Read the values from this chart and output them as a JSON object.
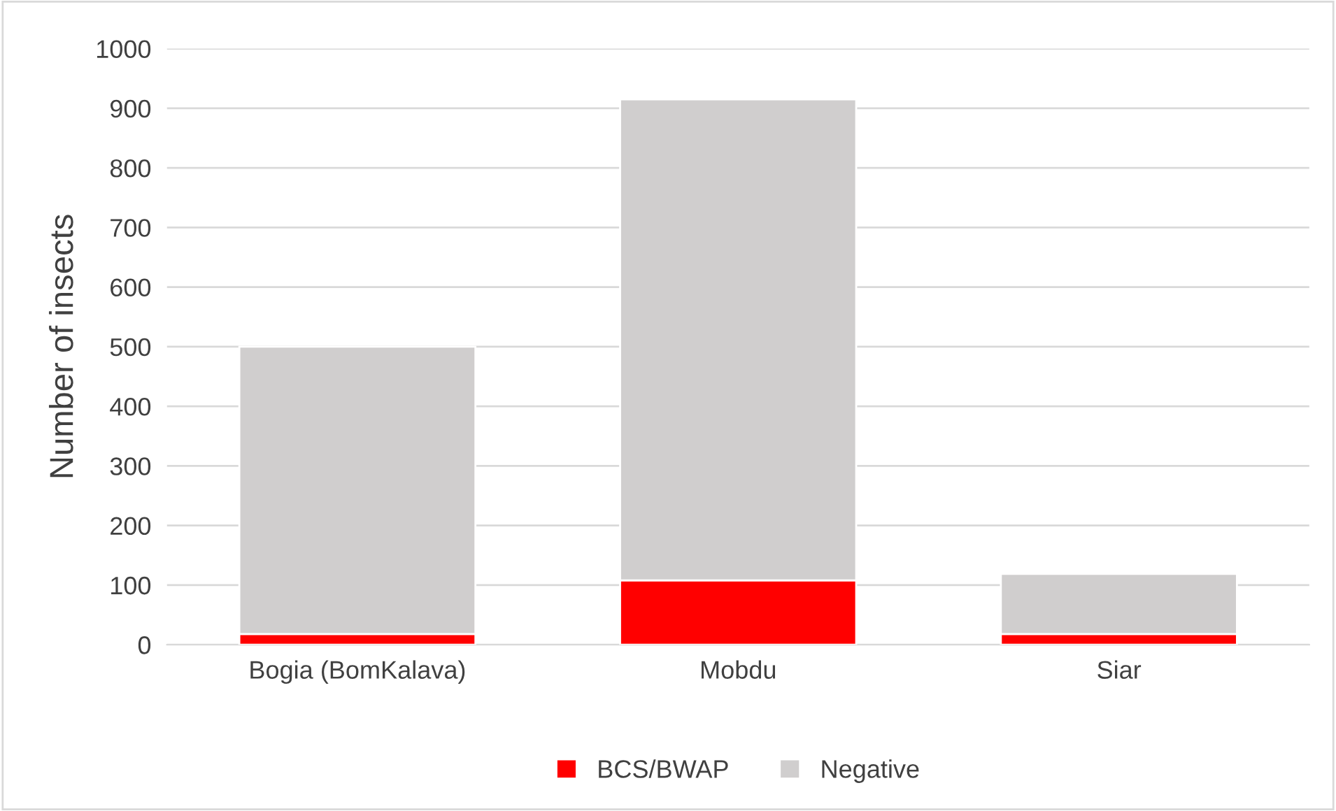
{
  "chart_data": {
    "type": "bar",
    "stacked": true,
    "ylabel": "Number of insects",
    "categories": [
      "Bogia (BomKalava)",
      "Mobdu",
      "Siar"
    ],
    "series": [
      {
        "name": "BCS/BWAP",
        "color": "#ff0000",
        "values": [
          18,
          108,
          18
        ]
      },
      {
        "name": "Negative",
        "color": "#d0cece",
        "values": [
          482,
          807,
          101
        ]
      }
    ],
    "ylim": [
      0,
      1000
    ],
    "yticks": [
      0,
      100,
      200,
      300,
      400,
      500,
      600,
      700,
      800,
      900,
      1000
    ],
    "grid": "y",
    "legend": "bottom"
  }
}
